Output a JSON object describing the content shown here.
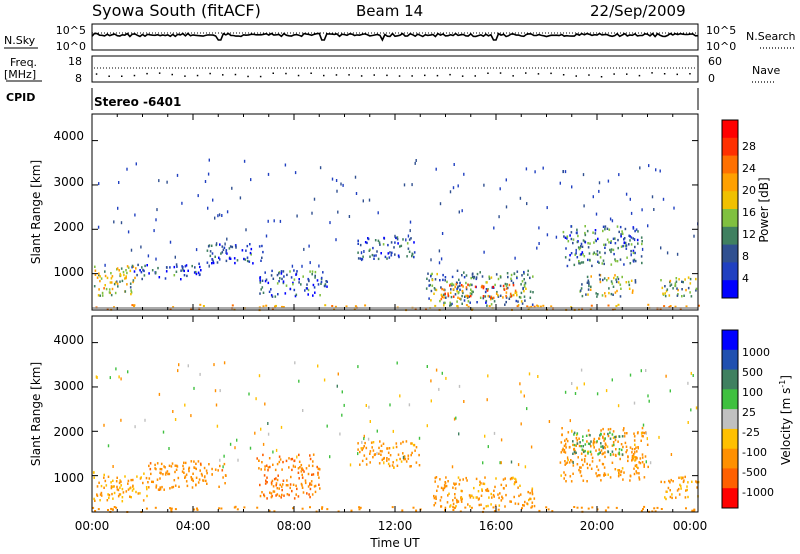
{
  "header": {
    "station": "Syowa South (fitACF)",
    "beam": "Beam 14",
    "date": "22/Sep/2009"
  },
  "strips": {
    "nsky_label": "N.Sky",
    "nsearch_label": "N.Search",
    "freq_label": "Freq.",
    "freq_unit": "[MHz]",
    "nave_label": "Nave",
    "cpid_label": "CPID",
    "cpid_value": "Stereo -6401",
    "nsky_ticks": [
      "10^5",
      "10^0"
    ],
    "nsearch_ticks": [
      "10^5",
      "10^0"
    ],
    "freq_ticks": [
      "18",
      "8"
    ],
    "nave_ticks": [
      "60",
      "0"
    ]
  },
  "axes": {
    "ylabel": "Slant Range [km]",
    "xlabel": "Time UT",
    "yticks": [
      "4000",
      "3000",
      "2000",
      "1000"
    ],
    "xticks": [
      "00:00",
      "04:00",
      "08:00",
      "12:00",
      "16:00",
      "20:00",
      "00:00"
    ]
  },
  "power_bar": {
    "label": "Power [dB]",
    "ticks": [
      "28",
      "24",
      "20",
      "16",
      "12",
      "8",
      "4"
    ],
    "colors": [
      "#ff0000",
      "#ff3000",
      "#ff7000",
      "#ffa000",
      "#f0c000",
      "#80c040",
      "#408060",
      "#305090",
      "#2040c0",
      "#0000ff"
    ]
  },
  "velocity_bar": {
    "label": "Velocity [m s",
    "label_sup": "-1",
    "label_end": "]",
    "ticks": [
      "1000",
      "500",
      "100",
      "25",
      "-25",
      "-100",
      "-500",
      "-1000"
    ],
    "colors": [
      "#0000ff",
      "#2050b0",
      "#408060",
      "#40c040",
      "#c0c0c0",
      "#ffc000",
      "#ff9000",
      "#ff6000",
      "#ff0000"
    ]
  },
  "chart_data": [
    {
      "type": "heatmap",
      "title": "Power",
      "ylabel": "Slant Range [km]",
      "xlabel": "Time UT",
      "xlim": [
        0,
        24
      ],
      "ylim": [
        180,
        4600
      ],
      "colorbar_label": "Power [dB]",
      "colorbar_range": [
        0,
        32
      ],
      "regions": [
        {
          "t0": 0.0,
          "t1": 1.8,
          "r0": 500,
          "r1": 1200,
          "value": 16
        },
        {
          "t0": 1.5,
          "t1": 4.3,
          "r0": 900,
          "r1": 1250,
          "value": 6
        },
        {
          "t0": 4.5,
          "t1": 6.8,
          "r0": 1250,
          "r1": 1700,
          "value": 6
        },
        {
          "t0": 6.6,
          "t1": 9.3,
          "r0": 500,
          "r1": 1100,
          "value": 7
        },
        {
          "t0": 10.5,
          "t1": 12.8,
          "r0": 1350,
          "r1": 1850,
          "value": 7
        },
        {
          "t0": 13.2,
          "t1": 17.5,
          "r0": 300,
          "r1": 1100,
          "value": 10
        },
        {
          "t0": 13.8,
          "t1": 16.8,
          "r0": 450,
          "r1": 800,
          "value": 22
        },
        {
          "t0": 18.6,
          "t1": 21.8,
          "r0": 1200,
          "r1": 2100,
          "value": 9
        },
        {
          "t0": 19.3,
          "t1": 21.5,
          "r0": 500,
          "r1": 1000,
          "value": 14
        },
        {
          "t0": 22.5,
          "t1": 24.0,
          "r0": 500,
          "r1": 1000,
          "value": 14
        }
      ]
    },
    {
      "type": "heatmap",
      "title": "Velocity",
      "ylabel": "Slant Range [km]",
      "xlabel": "Time UT",
      "xlim": [
        0,
        24
      ],
      "ylim": [
        180,
        4600
      ],
      "colorbar_label": "Velocity [m s-1]",
      "regions": [
        {
          "t0": 0.0,
          "t1": 2.2,
          "r0": 450,
          "r1": 1100,
          "value": -100
        },
        {
          "t0": 2.2,
          "t1": 5.3,
          "r0": 700,
          "r1": 1350,
          "value": -300
        },
        {
          "t0": 6.5,
          "t1": 9.0,
          "r0": 500,
          "r1": 1500,
          "value": -400
        },
        {
          "t0": 10.5,
          "t1": 13.0,
          "r0": 1200,
          "r1": 1800,
          "value": -200
        },
        {
          "t0": 13.5,
          "t1": 17.5,
          "r0": 300,
          "r1": 1000,
          "value": -150
        },
        {
          "t0": 18.5,
          "t1": 22.0,
          "r0": 900,
          "r1": 2100,
          "value": -200
        },
        {
          "t0": 19.0,
          "t1": 21.0,
          "r0": 1500,
          "r1": 2000,
          "value": 100
        },
        {
          "t0": 22.5,
          "t1": 24.0,
          "r0": 500,
          "r1": 1000,
          "value": -100
        }
      ]
    }
  ]
}
